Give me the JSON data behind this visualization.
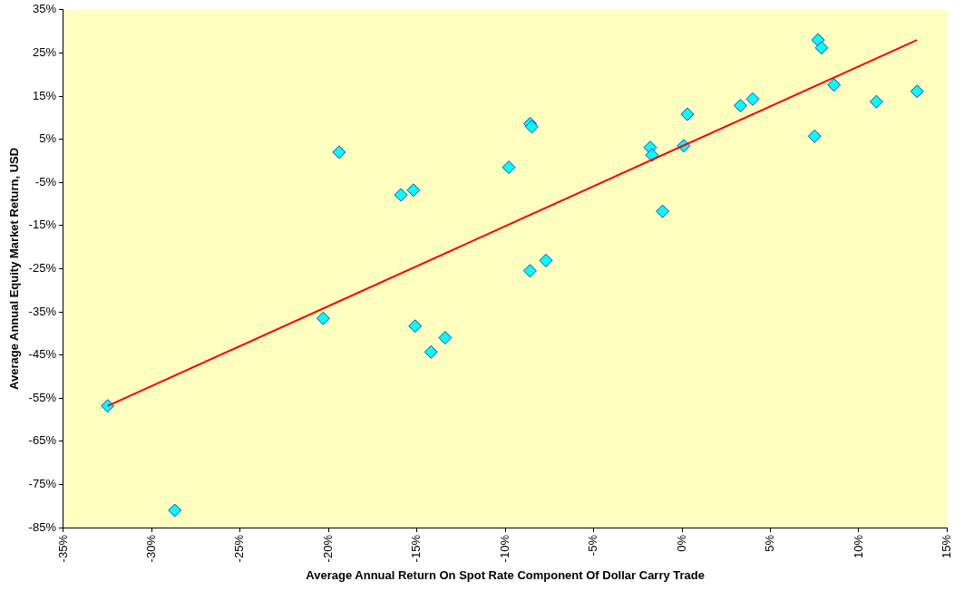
{
  "chart_data": {
    "type": "scatter",
    "xlabel": "Average Annual Return On Spot Rate Component Of Dollar Carry Trade",
    "ylabel": "Average Annual Equity Market Return, USD",
    "legend": false,
    "grid": false,
    "xlim": [
      -35,
      15
    ],
    "xticks": [
      {
        "value": -35,
        "label": "-35%"
      },
      {
        "value": -30,
        "label": "-30%"
      },
      {
        "value": -25,
        "label": "-25%"
      },
      {
        "value": -20,
        "label": "-20%"
      },
      {
        "value": -15,
        "label": "-15%"
      },
      {
        "value": -10,
        "label": "-10%"
      },
      {
        "value": -5,
        "label": "-5%"
      },
      {
        "value": 0,
        "label": "0%"
      },
      {
        "value": 5,
        "label": "5%"
      },
      {
        "value": 10,
        "label": "10%"
      },
      {
        "value": 15,
        "label": "15%"
      }
    ],
    "ylim": [
      -85,
      35
    ],
    "yticks": [
      {
        "value": -85,
        "label": "-85%"
      },
      {
        "value": -75,
        "label": "-75%"
      },
      {
        "value": -65,
        "label": "-65%"
      },
      {
        "value": -55,
        "label": "-55%"
      },
      {
        "value": -45,
        "label": "-45%"
      },
      {
        "value": -35,
        "label": "-35%"
      },
      {
        "value": -25,
        "label": "-25%"
      },
      {
        "value": -15,
        "label": "-15%"
      },
      {
        "value": -5,
        "label": "-5%"
      },
      {
        "value": 5,
        "label": "5%"
      },
      {
        "value": 15,
        "label": "15%"
      },
      {
        "value": 25,
        "label": "25%"
      },
      {
        "value": 35,
        "label": "35%"
      }
    ],
    "series": [
      {
        "marker": "diamond",
        "color": "#00ffff",
        "x": [
          -32.5,
          -28.7,
          -20.3,
          -19.4,
          -15.9,
          -15.2,
          -15.1,
          -14.2,
          -13.4,
          -9.8,
          -8.6,
          -8.5,
          -8.6,
          -7.7,
          -1.8,
          -1.7,
          -1.1,
          0.1,
          0.3,
          3.3,
          4.0,
          7.5,
          7.7,
          7.9,
          8.6,
          11.0,
          13.3
        ],
        "values": [
          -56.8,
          -81.0,
          -36.5,
          2.0,
          -7.9,
          -6.8,
          -38.3,
          -44.3,
          -41.0,
          -1.5,
          8.6,
          7.9,
          -25.5,
          -23.1,
          3.1,
          1.3,
          -11.7,
          3.5,
          10.8,
          12.8,
          14.3,
          5.7,
          28.0,
          26.2,
          17.6,
          13.7,
          16.1
        ]
      },
      {
        "type": "line",
        "color": "#ff0000",
        "x": [
          -32.5,
          13.3
        ],
        "values": [
          -56.8,
          28.0
        ]
      }
    ]
  }
}
